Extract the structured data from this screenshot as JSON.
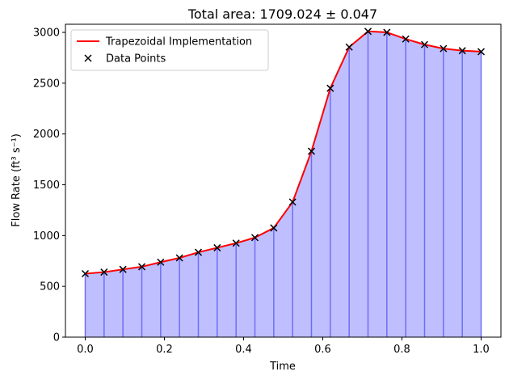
{
  "chart_data": {
    "type": "area",
    "title": "Total area: 1709.024 ± 0.047",
    "xlabel": "Time",
    "ylabel": "Flow Rate (ft³ s⁻¹)",
    "xlim": [
      -0.05,
      1.05
    ],
    "ylim": [
      0,
      3080
    ],
    "xticks": [
      0.0,
      0.2,
      0.4,
      0.6,
      0.8,
      1.0
    ],
    "xtick_labels": [
      "0.0",
      "0.2",
      "0.4",
      "0.6",
      "0.8",
      "1.0"
    ],
    "yticks": [
      0,
      500,
      1000,
      1500,
      2000,
      2500,
      3000
    ],
    "ytick_labels": [
      "0",
      "500",
      "1000",
      "1500",
      "2000",
      "2500",
      "3000"
    ],
    "legend_position": "top-left",
    "grid": false,
    "x": [
      0.0,
      0.0476,
      0.0952,
      0.1429,
      0.1905,
      0.2381,
      0.2857,
      0.3333,
      0.381,
      0.4286,
      0.4762,
      0.5238,
      0.5714,
      0.619,
      0.6667,
      0.7143,
      0.7619,
      0.8095,
      0.8571,
      0.9048,
      0.9524,
      1.0
    ],
    "series": [
      {
        "name": "Trapezoidal Implementation",
        "kind": "line",
        "color": "#ff0000",
        "values": [
          625,
          640,
          667,
          693,
          738,
          780,
          835,
          880,
          925,
          980,
          1075,
          1330,
          1830,
          2450,
          2855,
          3010,
          3000,
          2935,
          2880,
          2840,
          2820,
          2810
        ]
      },
      {
        "name": "Data Points",
        "kind": "marker",
        "marker": "x",
        "color": "#000000",
        "values": [
          625,
          640,
          667,
          693,
          738,
          780,
          835,
          880,
          925,
          980,
          1075,
          1330,
          1830,
          2450,
          2855,
          3010,
          3000,
          2935,
          2880,
          2840,
          2820,
          2810
        ]
      }
    ],
    "fill_color": "#bfbfff",
    "divider_color": "#6e6ef5"
  }
}
